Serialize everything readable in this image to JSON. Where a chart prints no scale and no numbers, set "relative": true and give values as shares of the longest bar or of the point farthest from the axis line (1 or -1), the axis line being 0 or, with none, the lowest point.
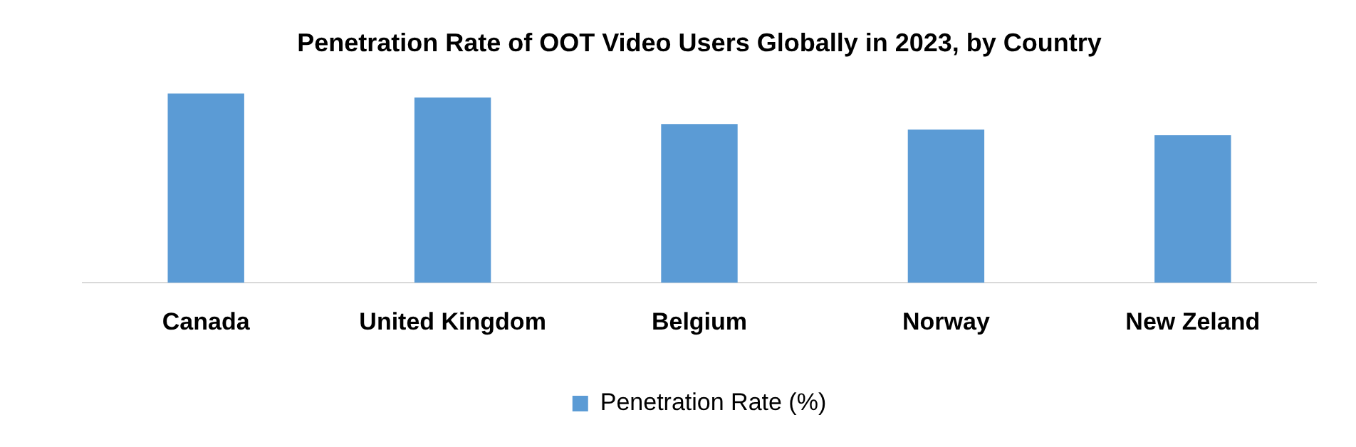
{
  "chart_data": {
    "type": "bar",
    "title": "Penetration Rate of OOT Video Users Globally in 2023, by Country",
    "categories": [
      "Canada",
      "United Kingdom",
      "Belgium",
      "Norway",
      "New Zeland"
    ],
    "relative": true,
    "legend": "bottom",
    "grid": false,
    "series": [
      {
        "name": "Penetration Rate (%)",
        "color": "#5b9bd5",
        "values": [
          1,
          0.978,
          0.838,
          0.809,
          0.779
        ]
      }
    ]
  }
}
